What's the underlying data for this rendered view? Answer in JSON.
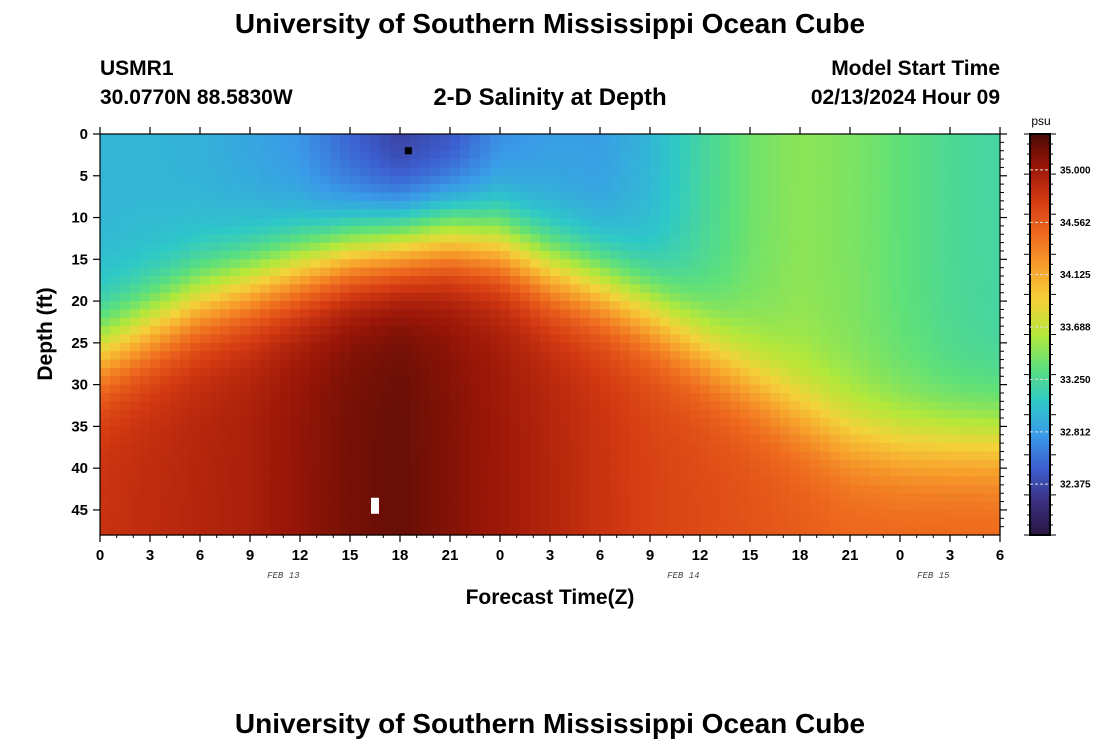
{
  "header": {
    "title": "University of Southern Mississippi Ocean Cube",
    "station": "USMR1",
    "coords": "30.0770N  88.5830W",
    "plot_title": "2-D Salinity at Depth",
    "model_start_label": "Model Start Time",
    "model_start_value": "02/13/2024 Hour 09"
  },
  "footer": {
    "title": "University of Southern Mississippi Ocean Cube"
  },
  "colors": {
    "ramp": [
      "#2a1440",
      "#3a2f80",
      "#3c5fd0",
      "#3a9be8",
      "#2ec8c8",
      "#5ee07a",
      "#b4e83a",
      "#f4d23a",
      "#f7a02c",
      "#ee6a1e",
      "#d43a12",
      "#9a1608",
      "#4a0a04"
    ]
  },
  "chart_data": {
    "type": "heatmap",
    "title": "2-D Salinity at Depth",
    "xlabel": "Forecast Time(Z)",
    "ylabel": "Depth (ft)",
    "x_ticks": [
      "0",
      "3",
      "6",
      "9",
      "12",
      "15",
      "18",
      "21",
      "0",
      "3",
      "6",
      "9",
      "12",
      "15",
      "18",
      "21",
      "0",
      "3",
      "6"
    ],
    "date_labels": [
      {
        "label": "FEB 13",
        "hour": 11
      },
      {
        "label": "FEB 14",
        "hour": 35
      },
      {
        "label": "FEB 15",
        "hour": 50
      }
    ],
    "y_ticks": [
      0,
      5,
      10,
      15,
      20,
      25,
      30,
      35,
      40,
      45
    ],
    "xlim": [
      0,
      54
    ],
    "ylim": [
      0,
      48
    ],
    "colorbar": {
      "unit": "psu",
      "range": [
        31.95,
        35.3
      ],
      "labels": [
        "35.000",
        "34.562",
        "34.125",
        "33.688",
        "33.250",
        "32.812",
        "32.375"
      ]
    },
    "markers": [
      {
        "type": "min",
        "hour": 18.5,
        "depth": 2,
        "color": "#000000"
      },
      {
        "type": "max",
        "hour": 16.5,
        "depth": 44.5,
        "color": "#ffffff"
      }
    ],
    "profiles": {
      "hours": [
        0,
        3,
        6,
        9,
        12,
        15,
        18,
        21,
        24,
        27,
        30,
        33,
        36,
        39,
        42,
        45,
        48,
        51,
        54
      ],
      "surface": [
        32.95,
        32.95,
        32.92,
        32.85,
        32.75,
        32.5,
        32.3,
        32.4,
        32.7,
        32.8,
        32.8,
        32.95,
        33.2,
        33.4,
        33.5,
        33.45,
        33.35,
        33.25,
        33.2
      ],
      "cline": [
        26,
        23,
        20,
        18,
        16,
        14,
        13,
        12,
        13,
        16,
        18,
        21,
        25,
        29,
        33,
        36,
        37,
        37,
        37
      ],
      "deep": [
        34.8,
        34.85,
        34.9,
        34.95,
        35.05,
        35.15,
        35.2,
        35.1,
        35.0,
        34.9,
        34.8,
        34.7,
        34.65,
        34.6,
        34.55,
        34.5,
        34.5,
        34.5,
        34.5
      ]
    }
  }
}
